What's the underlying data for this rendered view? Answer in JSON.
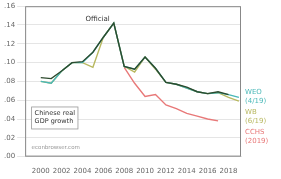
{
  "chart_data": {
    "type": "line",
    "annotations": [
      "Chinese real\nGDP growth",
      "econbrowser.com"
    ],
    "xlim": [
      1998.5,
      2019.2
    ],
    "xticks": [
      2000,
      2002,
      2004,
      2006,
      2008,
      2010,
      2012,
      2014,
      2016,
      2018
    ],
    "ylim": [
      0.0,
      0.16
    ],
    "yticks": [
      {
        "value": 0.0,
        "label": ".00"
      },
      {
        "value": 0.02,
        "label": ".02"
      },
      {
        "value": 0.04,
        "label": ".04"
      },
      {
        "value": 0.06,
        "label": ".06"
      },
      {
        "value": 0.08,
        "label": ".08"
      },
      {
        "value": 0.1,
        "label": ".10"
      },
      {
        "value": 0.12,
        "label": ".12"
      },
      {
        "value": 0.14,
        "label": ".14"
      },
      {
        "value": 0.16,
        "label": ".16"
      }
    ],
    "grid": "y",
    "series": [
      {
        "name": "Official",
        "color": "#2d4a2d",
        "x": [
          2000,
          2001,
          2002,
          2003,
          2004,
          2005,
          2006,
          2007,
          2008,
          2009,
          2010,
          2011,
          2012,
          2013,
          2014,
          2015,
          2016,
          2017,
          2018
        ],
        "values": [
          0.084,
          0.083,
          0.091,
          0.1,
          0.101,
          0.111,
          0.127,
          0.142,
          0.096,
          0.093,
          0.106,
          0.094,
          0.079,
          0.077,
          0.074,
          0.069,
          0.067,
          0.069,
          0.066
        ]
      },
      {
        "name": "WEO\n(4/19)",
        "color": "#4ab8b8",
        "x": [
          2000,
          2001,
          2002,
          2003,
          2004,
          2005,
          2006,
          2007,
          2008,
          2009,
          2010,
          2011,
          2012,
          2013,
          2014,
          2015,
          2016,
          2017,
          2018,
          2019
        ],
        "values": [
          0.08,
          0.078,
          0.091,
          0.1,
          0.1,
          0.111,
          0.127,
          0.142,
          0.096,
          0.093,
          0.106,
          0.094,
          0.079,
          0.077,
          0.073,
          0.069,
          0.067,
          0.068,
          0.066,
          0.063
        ]
      },
      {
        "name": "WB\n(6/19)",
        "color": "#b8b860",
        "x": [
          2000,
          2001,
          2002,
          2003,
          2004,
          2005,
          2006,
          2007,
          2008,
          2009,
          2010,
          2011,
          2012,
          2013,
          2014,
          2015,
          2016,
          2017,
          2018,
          2019
        ],
        "values": [
          0.08,
          0.078,
          0.091,
          0.1,
          0.1,
          0.095,
          0.127,
          0.142,
          0.096,
          0.09,
          0.106,
          0.093,
          0.079,
          0.077,
          0.073,
          0.069,
          0.067,
          0.068,
          0.063,
          0.059
        ]
      },
      {
        "name": "CCHS\n(2019)",
        "color": "#e87878",
        "x": [
          2008,
          2009,
          2010,
          2011,
          2012,
          2013,
          2014,
          2015,
          2016,
          2017
        ],
        "values": [
          0.095,
          0.078,
          0.064,
          0.066,
          0.055,
          0.051,
          0.046,
          0.043,
          0.04,
          0.038
        ]
      }
    ]
  }
}
